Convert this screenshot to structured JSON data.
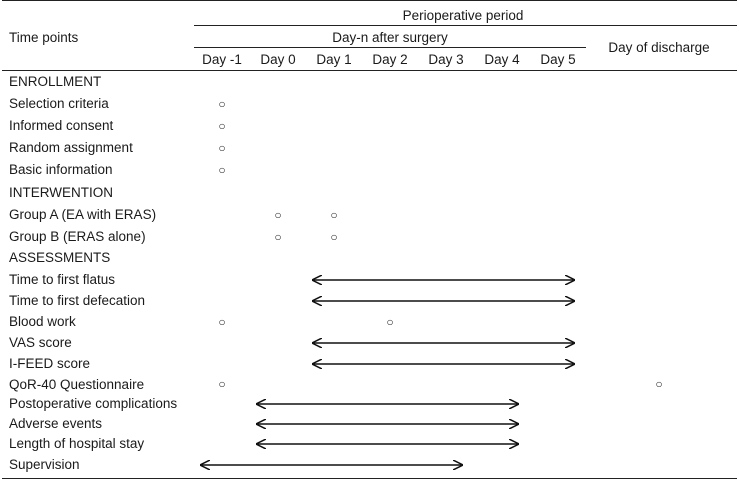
{
  "header": {
    "time_points_label": "Time points",
    "perioperative_label": "Perioperative period",
    "dayn_label": "Day-n after surgery",
    "discharge_label": "Day of discharge",
    "days": [
      "Day -1",
      "Day 0",
      "Day 1",
      "Day 2",
      "Day 3",
      "Day 4",
      "Day 5"
    ]
  },
  "marker_symbol": "○",
  "rows": [
    {
      "label": "ENROLLMENT",
      "section": true
    },
    {
      "label": "Selection criteria",
      "marks": [
        "Day -1"
      ]
    },
    {
      "label": "Informed consent",
      "marks": [
        "Day -1"
      ]
    },
    {
      "label": "Random assignment",
      "marks": [
        "Day -1"
      ]
    },
    {
      "label": "Basic information",
      "marks": [
        "Day -1"
      ]
    },
    {
      "label": "INTERWENTION",
      "section": true
    },
    {
      "label": "Group A (EA with ERAS)",
      "marks": [
        "Day 0",
        "Day 1"
      ]
    },
    {
      "label": "Group B (ERAS alone)",
      "marks": [
        "Day 0",
        "Day 1"
      ]
    },
    {
      "label": "ASSESSMENTS",
      "section": true
    },
    {
      "label": "Time to first flatus",
      "range": [
        "Day 1",
        "Day 5"
      ]
    },
    {
      "label": "Time to first defecation",
      "range": [
        "Day 1",
        "Day 5"
      ]
    },
    {
      "label": "Blood work",
      "marks": [
        "Day -1",
        "Day 2"
      ]
    },
    {
      "label": "VAS score",
      "range": [
        "Day 1",
        "Day 5"
      ]
    },
    {
      "label": "I-FEED score",
      "range": [
        "Day 1",
        "Day 5"
      ]
    },
    {
      "label": "QoR-40 Questionnaire",
      "marks": [
        "Day -1",
        "Day of discharge"
      ]
    },
    {
      "label": "Postoperative complications",
      "range": [
        "Day 0",
        "Day 4"
      ]
    },
    {
      "label": "Adverse events",
      "range": [
        "Day 0",
        "Day 4"
      ]
    },
    {
      "label": "Length of hospital stay",
      "range": [
        "Day 0",
        "Day 4"
      ]
    },
    {
      "label": "Supervision",
      "range": [
        "Day -1",
        "Day 3"
      ]
    }
  ]
}
